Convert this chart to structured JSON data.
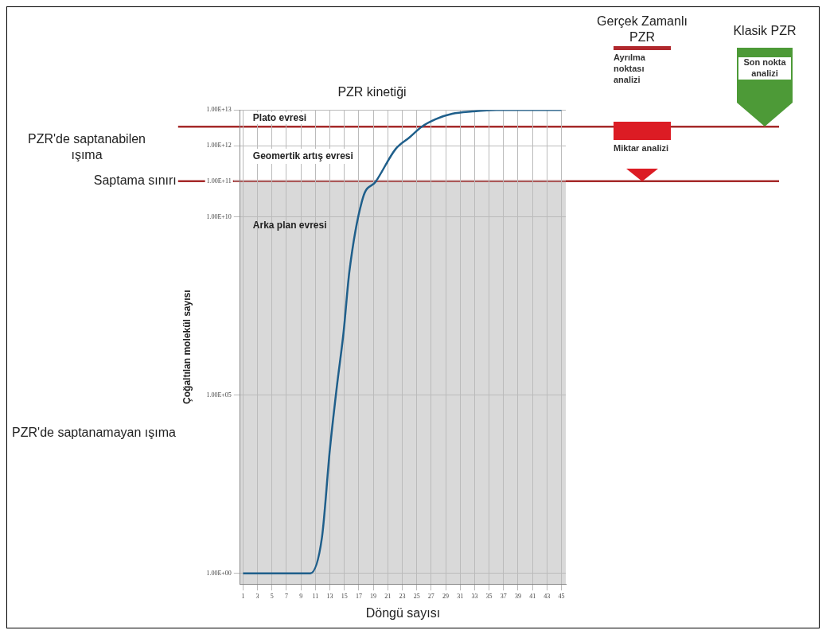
{
  "chart_data": {
    "type": "line",
    "title": "PZR kinetiği",
    "xlabel": "Döngü sayısı",
    "ylabel": "Çoğaltılan molekül sayısı",
    "x": [
      1,
      3,
      5,
      7,
      9,
      10.3,
      11.9,
      13,
      14,
      14.9,
      15.7,
      17.6,
      19.3,
      22.1,
      24,
      25.7,
      27.6,
      29.9,
      32.7,
      36,
      45
    ],
    "series": [
      {
        "color": "#1f5f8b",
        "values": [
          1,
          1,
          1,
          1,
          1,
          1,
          10,
          3000.0,
          200000.0,
          6000000.0,
          300000000.0,
          36000000000.0,
          95000000000.0,
          810000000000.0,
          1700000000000.0,
          3400000000000.0,
          5500000000000.0,
          7800000000000.0,
          9100000000000.0,
          10000000000000.0,
          10000000000000.0
        ]
      }
    ],
    "xlim": [
      0.6,
      45.6
    ],
    "xticks": [
      1,
      3,
      5,
      7,
      9,
      11,
      13,
      15,
      17,
      19,
      21,
      23,
      25,
      27,
      29,
      31,
      33,
      35,
      37,
      39,
      41,
      43,
      45
    ],
    "ylim": [
      0.5,
      10000000000000.0
    ],
    "yticks": [
      {
        "value": 1,
        "label": "1.00E+00"
      },
      {
        "value": 100000.0,
        "label": "1.00E+05"
      },
      {
        "value": 10000000000.0,
        "label": "1.00E+10"
      },
      {
        "value": 100000000000.0,
        "label": "1.00E+11"
      },
      {
        "value": 1000000000000.0,
        "label": "1.00E+12"
      },
      {
        "value": 10000000000000.0,
        "label": "1.00E+13"
      }
    ],
    "log": true,
    "grid": true,
    "legend": false,
    "marker": "none",
    "line_style": "solid",
    "ref_lines": [
      {
        "axis": "y",
        "value": 3400000000000.0,
        "label": null,
        "color": "#a52a2a"
      },
      {
        "axis": "y",
        "value": 100000000000.0,
        "label": "Saptama sınırı",
        "color": "#a52a2a"
      }
    ],
    "bands": [
      {
        "axis": "y",
        "from": 0.5,
        "to": 100000000000.0,
        "label": null,
        "color": "#d9d9d9"
      }
    ],
    "annotations": [
      "Plato evresi",
      "Geomertik artış evresi",
      "Arka plan evresi",
      "PZR'de saptanabilen ışıma",
      "PZR'de saptanamayan ışıma",
      "Gerçek Zamanlı PZR",
      "Ayrılma noktası analizi",
      "Miktar analizi",
      "Klasik PZR",
      "Son nokta analizi"
    ]
  }
}
